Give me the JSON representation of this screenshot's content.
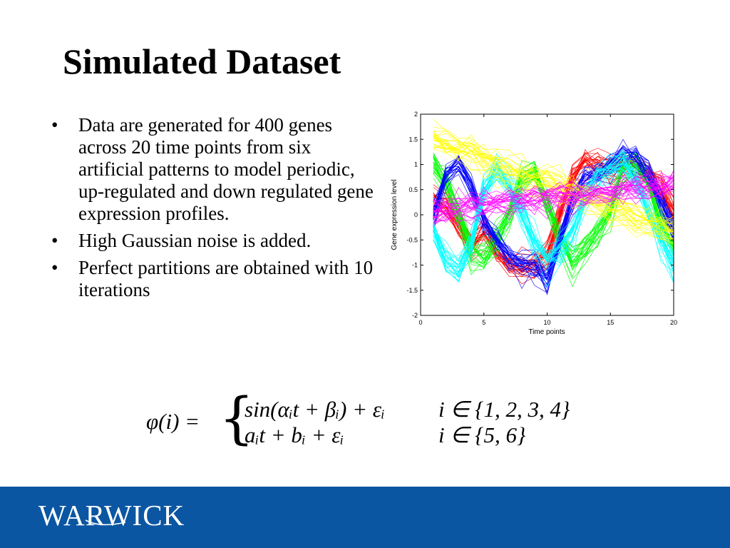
{
  "slide": {
    "title": "Simulated Dataset",
    "bullets": [
      "Data are generated for 400 genes across 20 time points from six artificial patterns to model periodic, up-regulated and down regulated gene expression profiles.",
      "High Gaussian noise is added.",
      "Perfect partitions are obtained with 10 iterations"
    ],
    "bullet_glyph": "•"
  },
  "formula": {
    "lhs": "φ(i) =",
    "brace": "{",
    "cases": [
      {
        "expr": "sin(αᵢt + βᵢ) + εᵢ",
        "cond": "i ∈ {1, 2, 3, 4}"
      },
      {
        "expr": "aᵢt + bᵢ + εᵢ",
        "cond": "i ∈ {5, 6}"
      }
    ]
  },
  "footer": {
    "logo_text": "WARWICK",
    "background": "#0b56a2"
  },
  "chart_data": {
    "type": "line",
    "title": "",
    "xlabel": "Time points",
    "ylabel": "Gene expression level",
    "xlim": [
      0,
      20
    ],
    "ylim": [
      -2,
      2
    ],
    "xticks": [
      0,
      5,
      10,
      15,
      20
    ],
    "yticks": [
      -2,
      -1.5,
      -1,
      -0.5,
      0,
      0.5,
      1,
      1.5,
      2
    ],
    "grid": false,
    "legend": "none",
    "x": [
      1,
      2,
      3,
      4,
      5,
      6,
      7,
      8,
      9,
      10,
      11,
      12,
      13,
      14,
      15,
      16,
      17,
      18,
      19,
      20
    ],
    "series": [
      {
        "color": "#ff0000",
        "values": [
          0.3,
          0.2,
          -0.2,
          -0.6,
          -0.3,
          -0.7,
          -1.0,
          -1.05,
          -1.0,
          -0.8,
          0.0,
          0.8,
          1.05,
          1.0,
          0.9,
          0.95,
          1.0,
          0.8,
          0.5,
          0.1
        ]
      },
      {
        "color": "#00ff00",
        "values": [
          1.0,
          0.6,
          0.0,
          -0.7,
          -0.9,
          -0.5,
          0.0,
          0.7,
          0.85,
          0.2,
          -0.5,
          -1.0,
          -0.7,
          -0.4,
          0.0,
          0.9,
          1.0,
          0.6,
          -0.2,
          -0.6
        ]
      },
      {
        "color": "#0000ff",
        "values": [
          0.0,
          0.8,
          1.0,
          0.6,
          -0.2,
          -0.5,
          -0.85,
          -1.0,
          -1.0,
          -1.3,
          -0.5,
          0.3,
          0.7,
          0.8,
          1.0,
          1.2,
          1.1,
          0.8,
          0.3,
          -0.3
        ]
      },
      {
        "color": "#00ffff",
        "values": [
          -0.3,
          -0.9,
          -1.1,
          -0.6,
          0.5,
          0.9,
          0.6,
          0.0,
          -0.5,
          -0.9,
          -0.75,
          -0.3,
          0.4,
          0.75,
          0.9,
          1.05,
          0.7,
          0.0,
          -0.5,
          -1.0
        ]
      },
      {
        "color": "#ffff00",
        "values": [
          1.5,
          1.4,
          1.3,
          1.25,
          1.1,
          1.0,
          0.9,
          0.8,
          0.7,
          0.65,
          0.55,
          0.45,
          0.35,
          0.25,
          0.15,
          0.05,
          -0.05,
          -0.15,
          -0.25,
          -0.35
        ]
      },
      {
        "color": "#ff00ff",
        "values": [
          0.05,
          0.08,
          0.11,
          0.14,
          0.17,
          0.2,
          0.23,
          0.26,
          0.29,
          0.32,
          0.35,
          0.37,
          0.39,
          0.41,
          0.43,
          0.46,
          0.49,
          0.52,
          0.55,
          0.58
        ]
      }
    ]
  }
}
